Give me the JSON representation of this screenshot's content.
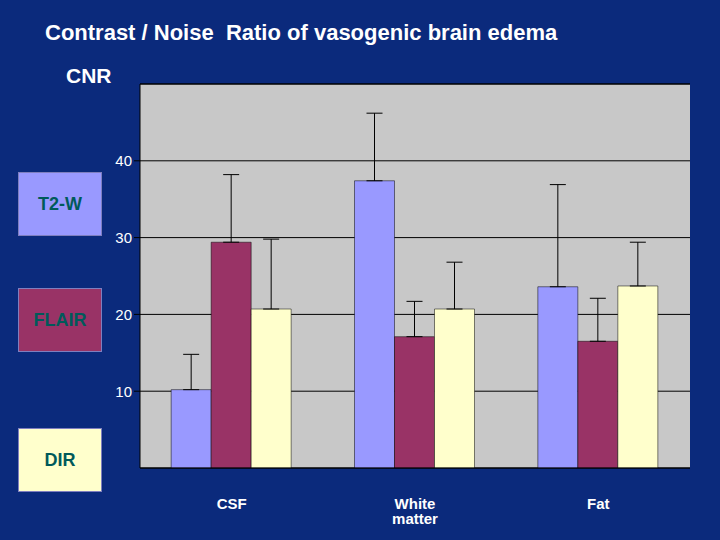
{
  "chart_data": {
    "type": "bar",
    "title": "Contrast / Noise  Ratio of vasogenic brain edema",
    "y_label": "CNR",
    "categories": [
      "CSF",
      "White matter",
      "Fat"
    ],
    "series": [
      {
        "name": "T2-W",
        "color": "#9999ff",
        "values": [
          10.2,
          37.4,
          23.6
        ],
        "errors": [
          4.6,
          8.8,
          13.3
        ]
      },
      {
        "name": "FLAIR",
        "color": "#993366",
        "values": [
          29.4,
          17.1,
          16.5
        ],
        "errors": [
          8.8,
          4.6,
          5.6
        ]
      },
      {
        "name": "DIR",
        "color": "#ffffcc",
        "values": [
          20.7,
          20.7,
          23.7
        ],
        "errors": [
          9.1,
          6.1,
          5.7
        ]
      }
    ],
    "ylim": [
      0,
      50
    ],
    "yticks": [
      10,
      20,
      30,
      40
    ],
    "grid": true,
    "legend": "left"
  }
}
